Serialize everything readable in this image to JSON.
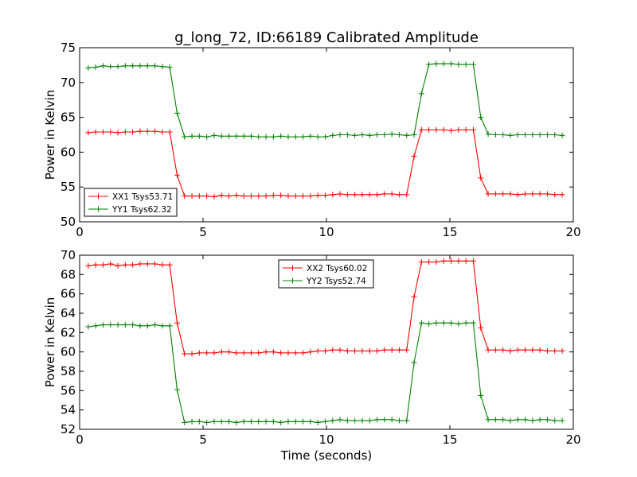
{
  "chart_data": [
    {
      "type": "line",
      "title": "g_long_72, ID:66189 Calibrated Amplitude",
      "xlabel": "",
      "ylabel": "Power in Kelvin",
      "xlim": [
        0,
        20
      ],
      "ylim": [
        50,
        75
      ],
      "xticks": [
        "0",
        "5",
        "10",
        "15",
        "20"
      ],
      "yticks": [
        "50",
        "55",
        "60",
        "65",
        "70",
        "75"
      ],
      "grid": false,
      "legend_position": "lower-left",
      "x": [
        0.35,
        0.65,
        0.95,
        1.25,
        1.55,
        1.85,
        2.15,
        2.45,
        2.75,
        3.05,
        3.35,
        3.65,
        3.95,
        4.25,
        4.55,
        4.85,
        5.15,
        5.45,
        5.75,
        6.05,
        6.35,
        6.65,
        6.95,
        7.25,
        7.55,
        7.85,
        8.15,
        8.45,
        8.75,
        9.05,
        9.35,
        9.65,
        9.95,
        10.25,
        10.55,
        10.85,
        11.15,
        11.45,
        11.75,
        12.05,
        12.35,
        12.65,
        12.95,
        13.25,
        13.55,
        13.85,
        14.15,
        14.45,
        14.75,
        15.05,
        15.35,
        15.65,
        15.95,
        16.25,
        16.55,
        16.85,
        17.15,
        17.45,
        17.75,
        18.05,
        18.35,
        18.65,
        18.95,
        19.25,
        19.55
      ],
      "series": [
        {
          "name": "XX1 Tsys53.71",
          "color": "#ff0000",
          "values": [
            62.8,
            62.9,
            62.9,
            62.9,
            62.8,
            62.9,
            62.9,
            63.0,
            63.0,
            63.0,
            62.9,
            62.9,
            56.7,
            53.7,
            53.7,
            53.7,
            53.7,
            53.6,
            53.8,
            53.7,
            53.8,
            53.7,
            53.7,
            53.7,
            53.7,
            53.8,
            53.8,
            53.7,
            53.7,
            53.7,
            53.7,
            53.8,
            53.8,
            53.9,
            54.0,
            53.9,
            53.9,
            53.9,
            53.9,
            53.9,
            54.0,
            54.0,
            53.9,
            53.9,
            59.4,
            63.2,
            63.2,
            63.2,
            63.2,
            63.1,
            63.2,
            63.2,
            63.2,
            56.3,
            54.0,
            54.0,
            54.0,
            54.0,
            53.9,
            54.0,
            54.0,
            54.0,
            54.0,
            53.9,
            53.9
          ]
        },
        {
          "name": "YY1 Tsys62.32",
          "color": "#008000",
          "values": [
            72.1,
            72.2,
            72.4,
            72.3,
            72.3,
            72.4,
            72.4,
            72.4,
            72.4,
            72.4,
            72.3,
            72.2,
            65.6,
            62.2,
            62.3,
            62.3,
            62.2,
            62.4,
            62.3,
            62.3,
            62.3,
            62.3,
            62.3,
            62.2,
            62.2,
            62.2,
            62.3,
            62.2,
            62.2,
            62.2,
            62.3,
            62.2,
            62.2,
            62.4,
            62.5,
            62.5,
            62.4,
            62.5,
            62.4,
            62.5,
            62.5,
            62.6,
            62.5,
            62.4,
            62.5,
            68.4,
            72.6,
            72.7,
            72.7,
            72.7,
            72.6,
            72.6,
            72.6,
            65.0,
            62.6,
            62.5,
            62.5,
            62.4,
            62.5,
            62.5,
            62.5,
            62.5,
            62.5,
            62.5,
            62.4
          ]
        }
      ]
    },
    {
      "type": "line",
      "title": "",
      "xlabel": "Time (seconds)",
      "ylabel": "Power in Kelvin",
      "xlim": [
        0,
        20
      ],
      "ylim": [
        52,
        70
      ],
      "xticks": [
        "0",
        "5",
        "10",
        "15",
        "20"
      ],
      "yticks": [
        "52",
        "54",
        "56",
        "58",
        "60",
        "62",
        "64",
        "66",
        "68",
        "70"
      ],
      "grid": false,
      "legend_position": "upper-center",
      "x": [
        0.35,
        0.65,
        0.95,
        1.25,
        1.55,
        1.85,
        2.15,
        2.45,
        2.75,
        3.05,
        3.35,
        3.65,
        3.95,
        4.25,
        4.55,
        4.85,
        5.15,
        5.45,
        5.75,
        6.05,
        6.35,
        6.65,
        6.95,
        7.25,
        7.55,
        7.85,
        8.15,
        8.45,
        8.75,
        9.05,
        9.35,
        9.65,
        9.95,
        10.25,
        10.55,
        10.85,
        11.15,
        11.45,
        11.75,
        12.05,
        12.35,
        12.65,
        12.95,
        13.25,
        13.55,
        13.85,
        14.15,
        14.45,
        14.75,
        15.05,
        15.35,
        15.65,
        15.95,
        16.25,
        16.55,
        16.85,
        17.15,
        17.45,
        17.75,
        18.05,
        18.35,
        18.65,
        18.95,
        19.25,
        19.55
      ],
      "series": [
        {
          "name": "XX2 Tsys60.02",
          "color": "#ff0000",
          "values": [
            68.9,
            69.0,
            69.0,
            69.1,
            68.9,
            69.0,
            69.0,
            69.1,
            69.1,
            69.1,
            69.0,
            69.0,
            63.0,
            59.8,
            59.8,
            59.9,
            59.9,
            59.9,
            60.0,
            60.0,
            59.9,
            59.9,
            59.9,
            59.9,
            60.0,
            60.0,
            59.9,
            59.9,
            59.9,
            59.9,
            60.0,
            60.1,
            60.1,
            60.2,
            60.2,
            60.1,
            60.1,
            60.1,
            60.1,
            60.1,
            60.2,
            60.2,
            60.2,
            60.2,
            65.7,
            69.3,
            69.3,
            69.3,
            69.4,
            69.4,
            69.4,
            69.4,
            69.4,
            62.5,
            60.2,
            60.2,
            60.2,
            60.1,
            60.2,
            60.2,
            60.2,
            60.2,
            60.1,
            60.1,
            60.1
          ],
          "note_hidden": ""
        },
        {
          "name": "YY2 Tsys52.74",
          "color": "#008000",
          "values": [
            62.6,
            62.7,
            62.8,
            62.8,
            62.8,
            62.8,
            62.8,
            62.7,
            62.7,
            62.8,
            62.7,
            62.7,
            56.1,
            52.7,
            52.8,
            52.8,
            52.7,
            52.8,
            52.8,
            52.8,
            52.7,
            52.8,
            52.8,
            52.8,
            52.8,
            52.8,
            52.7,
            52.8,
            52.8,
            52.8,
            52.8,
            52.7,
            52.8,
            52.9,
            53.0,
            52.9,
            52.9,
            52.9,
            52.9,
            53.0,
            53.0,
            53.0,
            52.9,
            52.9,
            58.9,
            63.0,
            62.9,
            63.0,
            63.0,
            63.0,
            62.9,
            63.0,
            63.0,
            55.5,
            53.0,
            53.0,
            53.0,
            52.9,
            53.0,
            53.0,
            52.9,
            53.0,
            53.0,
            52.9,
            52.9
          ]
        }
      ]
    }
  ]
}
